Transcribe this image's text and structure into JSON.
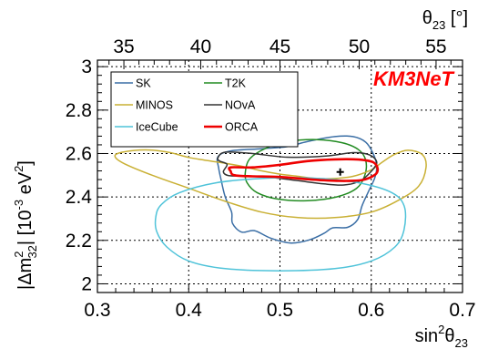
{
  "chart_data": {
    "type": "contour",
    "title": "",
    "brand_label": "KM3NeT",
    "brand_color": "#ff0000",
    "xlabel": {
      "base": "sin",
      "sup": "2",
      "mid": "θ",
      "sub": "23",
      "tail": ""
    },
    "x2label": {
      "base": "θ",
      "sub": "23",
      "tail": " [°]"
    },
    "ylabel": {
      "pre": "|Δm",
      "sup": "2",
      "sub": "32",
      "tail": "| [10",
      "sup2": "-3",
      "tail2": " eV",
      "sup3": "2",
      "end": "]"
    },
    "xlim": [
      0.3,
      0.7
    ],
    "ylim": [
      1.96,
      3.03
    ],
    "x_ticks": [
      0.3,
      0.4,
      0.5,
      0.6,
      0.7
    ],
    "x_tick_labels": [
      "0.3",
      "0.4",
      "0.5",
      "0.6",
      "0.7"
    ],
    "y_ticks": [
      2,
      2.2,
      2.4,
      2.6,
      2.8,
      3
    ],
    "y_tick_labels": [
      "2",
      "2.2",
      "2.4",
      "2.6",
      "2.8",
      "3"
    ],
    "x2_ticks_deg": [
      35,
      40,
      45,
      50,
      55
    ],
    "x2_tick_labels": [
      "35",
      "40",
      "45",
      "50",
      "55"
    ],
    "grid": true,
    "legend_position": "top-left",
    "best_fit": {
      "x": 0.566,
      "y": 2.515
    },
    "series": [
      {
        "name": "SK",
        "color": "#3a6ea5",
        "points": [
          [
            0.432,
            2.585
          ],
          [
            0.446,
            2.612
          ],
          [
            0.48,
            2.622
          ],
          [
            0.508,
            2.632
          ],
          [
            0.53,
            2.655
          ],
          [
            0.56,
            2.678
          ],
          [
            0.58,
            2.678
          ],
          [
            0.594,
            2.652
          ],
          [
            0.602,
            2.6
          ],
          [
            0.606,
            2.545
          ],
          [
            0.604,
            2.49
          ],
          [
            0.597,
            2.425
          ],
          [
            0.59,
            2.36
          ],
          [
            0.585,
            2.295
          ],
          [
            0.574,
            2.26
          ],
          [
            0.558,
            2.258
          ],
          [
            0.548,
            2.232
          ],
          [
            0.532,
            2.202
          ],
          [
            0.512,
            2.188
          ],
          [
            0.49,
            2.21
          ],
          [
            0.472,
            2.245
          ],
          [
            0.458,
            2.238
          ],
          [
            0.448,
            2.278
          ],
          [
            0.447,
            2.33
          ],
          [
            0.44,
            2.4
          ],
          [
            0.436,
            2.47
          ],
          [
            0.433,
            2.53
          ]
        ]
      },
      {
        "name": "T2K",
        "color": "#228b22",
        "points": [
          [
            0.462,
            2.512
          ],
          [
            0.467,
            2.576
          ],
          [
            0.485,
            2.625
          ],
          [
            0.51,
            2.656
          ],
          [
            0.54,
            2.664
          ],
          [
            0.568,
            2.65
          ],
          [
            0.586,
            2.618
          ],
          [
            0.594,
            2.568
          ],
          [
            0.593,
            2.5
          ],
          [
            0.584,
            2.44
          ],
          [
            0.562,
            2.4
          ],
          [
            0.53,
            2.383
          ],
          [
            0.498,
            2.39
          ],
          [
            0.475,
            2.42
          ],
          [
            0.464,
            2.465
          ]
        ]
      },
      {
        "name": "MINOS",
        "color": "#c9b034",
        "points": [
          [
            0.32,
            2.58
          ],
          [
            0.33,
            2.552
          ],
          [
            0.36,
            2.5
          ],
          [
            0.4,
            2.44
          ],
          [
            0.44,
            2.38
          ],
          [
            0.48,
            2.33
          ],
          [
            0.52,
            2.305
          ],
          [
            0.56,
            2.305
          ],
          [
            0.6,
            2.33
          ],
          [
            0.63,
            2.385
          ],
          [
            0.652,
            2.45
          ],
          [
            0.66,
            2.535
          ],
          [
            0.656,
            2.595
          ],
          [
            0.64,
            2.615
          ],
          [
            0.625,
            2.595
          ],
          [
            0.612,
            2.56
          ],
          [
            0.6,
            2.525
          ],
          [
            0.58,
            2.495
          ],
          [
            0.56,
            2.485
          ],
          [
            0.54,
            2.485
          ],
          [
            0.52,
            2.495
          ],
          [
            0.5,
            2.505
          ],
          [
            0.48,
            2.52
          ],
          [
            0.46,
            2.54
          ],
          [
            0.44,
            2.555
          ],
          [
            0.42,
            2.568
          ],
          [
            0.4,
            2.582
          ],
          [
            0.38,
            2.604
          ],
          [
            0.36,
            2.616
          ],
          [
            0.34,
            2.614
          ],
          [
            0.322,
            2.6
          ]
        ]
      },
      {
        "name": "NOvA",
        "color": "#333333",
        "points": [
          [
            0.432,
            2.58
          ],
          [
            0.44,
            2.606
          ],
          [
            0.47,
            2.6
          ],
          [
            0.508,
            2.583
          ],
          [
            0.55,
            2.588
          ],
          [
            0.58,
            2.604
          ],
          [
            0.598,
            2.594
          ],
          [
            0.606,
            2.56
          ],
          [
            0.6,
            2.518
          ],
          [
            0.588,
            2.474
          ],
          [
            0.57,
            2.455
          ],
          [
            0.548,
            2.46
          ],
          [
            0.52,
            2.475
          ],
          [
            0.49,
            2.49
          ],
          [
            0.462,
            2.496
          ],
          [
            0.444,
            2.498
          ],
          [
            0.438,
            2.515
          ],
          [
            0.442,
            2.55
          ],
          [
            0.434,
            2.565
          ]
        ]
      },
      {
        "name": "IceCube",
        "color": "#4fc3d9",
        "points": [
          [
            0.364,
            2.31
          ],
          [
            0.37,
            2.365
          ],
          [
            0.39,
            2.42
          ],
          [
            0.43,
            2.465
          ],
          [
            0.48,
            2.485
          ],
          [
            0.53,
            2.488
          ],
          [
            0.58,
            2.47
          ],
          [
            0.62,
            2.425
          ],
          [
            0.636,
            2.36
          ],
          [
            0.636,
            2.25
          ],
          [
            0.626,
            2.17
          ],
          [
            0.6,
            2.105
          ],
          [
            0.56,
            2.07
          ],
          [
            0.5,
            2.06
          ],
          [
            0.44,
            2.07
          ],
          [
            0.4,
            2.105
          ],
          [
            0.376,
            2.17
          ],
          [
            0.365,
            2.24
          ]
        ]
      },
      {
        "name": "ORCA",
        "color": "#ee0000",
        "points": [
          [
            0.446,
            2.518
          ],
          [
            0.446,
            2.536
          ],
          [
            0.47,
            2.536
          ],
          [
            0.5,
            2.548
          ],
          [
            0.53,
            2.565
          ],
          [
            0.56,
            2.573
          ],
          [
            0.586,
            2.572
          ],
          [
            0.602,
            2.56
          ],
          [
            0.607,
            2.53
          ],
          [
            0.604,
            2.502
          ],
          [
            0.59,
            2.478
          ],
          [
            0.565,
            2.474
          ],
          [
            0.535,
            2.48
          ],
          [
            0.5,
            2.492
          ],
          [
            0.47,
            2.495
          ],
          [
            0.45,
            2.5
          ]
        ]
      }
    ]
  }
}
